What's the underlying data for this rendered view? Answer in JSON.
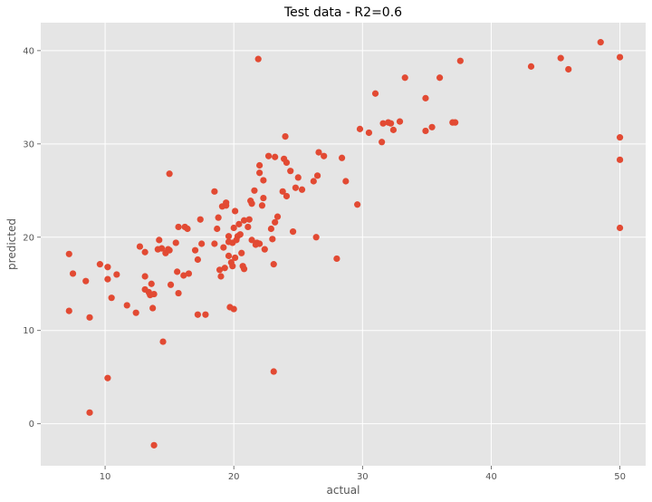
{
  "chart_data": {
    "type": "scatter",
    "title": "Test data  -  R2=0.6",
    "xlabel": "actual",
    "ylabel": "predicted",
    "xlim": [
      5,
      52
    ],
    "ylim": [
      -4.5,
      43
    ],
    "xticks": [
      10,
      20,
      30,
      40,
      50
    ],
    "yticks": [
      0,
      10,
      20,
      30,
      40
    ],
    "grid": true,
    "style": "ggplot",
    "background_color": "#e5e5e5",
    "grid_color": "#ffffff",
    "point_color": "#e24a33",
    "points": [
      [
        7.2,
        18.2
      ],
      [
        7.2,
        12.1
      ],
      [
        7.5,
        16.1
      ],
      [
        8.5,
        15.3
      ],
      [
        8.8,
        11.4
      ],
      [
        8.8,
        1.2
      ],
      [
        9.6,
        17.1
      ],
      [
        10.2,
        16.8
      ],
      [
        10.2,
        15.5
      ],
      [
        10.2,
        4.9
      ],
      [
        10.5,
        13.5
      ],
      [
        10.9,
        16.0
      ],
      [
        11.7,
        12.7
      ],
      [
        12.4,
        11.9
      ],
      [
        12.7,
        19.0
      ],
      [
        13.1,
        18.4
      ],
      [
        13.1,
        15.8
      ],
      [
        13.1,
        14.4
      ],
      [
        13.4,
        14.1
      ],
      [
        13.5,
        13.8
      ],
      [
        13.6,
        15.0
      ],
      [
        13.7,
        12.4
      ],
      [
        13.8,
        13.9
      ],
      [
        13.8,
        -2.3
      ],
      [
        14.1,
        18.7
      ],
      [
        14.2,
        19.7
      ],
      [
        14.4,
        18.8
      ],
      [
        14.5,
        8.8
      ],
      [
        14.7,
        18.3
      ],
      [
        14.9,
        18.7
      ],
      [
        15.0,
        18.6
      ],
      [
        15.0,
        26.8
      ],
      [
        15.1,
        14.9
      ],
      [
        15.5,
        19.4
      ],
      [
        15.6,
        16.3
      ],
      [
        15.7,
        14.0
      ],
      [
        15.7,
        21.1
      ],
      [
        16.1,
        15.9
      ],
      [
        16.2,
        21.1
      ],
      [
        16.4,
        20.9
      ],
      [
        16.5,
        16.1
      ],
      [
        17.0,
        18.6
      ],
      [
        17.2,
        17.6
      ],
      [
        17.2,
        11.7
      ],
      [
        17.4,
        21.9
      ],
      [
        17.5,
        19.3
      ],
      [
        17.8,
        11.7
      ],
      [
        18.5,
        24.9
      ],
      [
        18.5,
        19.3
      ],
      [
        18.7,
        20.9
      ],
      [
        18.8,
        22.1
      ],
      [
        18.9,
        16.5
      ],
      [
        19.0,
        15.8
      ],
      [
        19.1,
        23.3
      ],
      [
        19.2,
        18.9
      ],
      [
        19.3,
        16.7
      ],
      [
        19.4,
        23.4
      ],
      [
        19.4,
        23.7
      ],
      [
        19.6,
        19.5
      ],
      [
        19.6,
        20.1
      ],
      [
        19.6,
        18.0
      ],
      [
        19.7,
        12.5
      ],
      [
        19.8,
        17.3
      ],
      [
        19.9,
        19.4
      ],
      [
        19.9,
        16.9
      ],
      [
        20.0,
        21.0
      ],
      [
        20.0,
        12.3
      ],
      [
        20.1,
        22.8
      ],
      [
        20.1,
        17.8
      ],
      [
        20.2,
        19.7
      ],
      [
        20.3,
        20.1
      ],
      [
        20.4,
        21.4
      ],
      [
        20.5,
        20.3
      ],
      [
        20.6,
        18.3
      ],
      [
        20.7,
        16.9
      ],
      [
        20.8,
        16.6
      ],
      [
        20.8,
        21.8
      ],
      [
        21.1,
        21.1
      ],
      [
        21.2,
        21.9
      ],
      [
        21.3,
        23.9
      ],
      [
        21.4,
        19.7
      ],
      [
        21.4,
        23.6
      ],
      [
        21.6,
        25.0
      ],
      [
        21.7,
        19.2
      ],
      [
        21.8,
        19.4
      ],
      [
        21.9,
        39.1
      ],
      [
        22.0,
        19.3
      ],
      [
        22.0,
        27.7
      ],
      [
        22.0,
        26.9
      ],
      [
        22.2,
        23.4
      ],
      [
        22.3,
        24.2
      ],
      [
        22.3,
        26.1
      ],
      [
        22.4,
        18.7
      ],
      [
        22.7,
        28.7
      ],
      [
        22.9,
        20.9
      ],
      [
        23.0,
        19.8
      ],
      [
        23.1,
        17.1
      ],
      [
        23.1,
        5.6
      ],
      [
        23.2,
        21.6
      ],
      [
        23.2,
        28.6
      ],
      [
        23.4,
        22.2
      ],
      [
        23.8,
        24.9
      ],
      [
        23.9,
        28.4
      ],
      [
        24.0,
        30.8
      ],
      [
        24.1,
        24.4
      ],
      [
        24.1,
        28.0
      ],
      [
        24.4,
        27.1
      ],
      [
        24.6,
        20.6
      ],
      [
        24.8,
        25.3
      ],
      [
        25.0,
        26.4
      ],
      [
        25.3,
        25.1
      ],
      [
        26.2,
        26.0
      ],
      [
        26.4,
        20.0
      ],
      [
        26.5,
        26.6
      ],
      [
        26.6,
        29.1
      ],
      [
        27.0,
        28.7
      ],
      [
        28.0,
        17.7
      ],
      [
        28.4,
        28.5
      ],
      [
        28.7,
        26.0
      ],
      [
        29.6,
        23.5
      ],
      [
        29.8,
        31.6
      ],
      [
        30.5,
        31.2
      ],
      [
        31.0,
        35.4
      ],
      [
        31.5,
        30.2
      ],
      [
        31.6,
        32.2
      ],
      [
        32.0,
        32.3
      ],
      [
        32.2,
        32.2
      ],
      [
        32.4,
        31.5
      ],
      [
        32.9,
        32.4
      ],
      [
        33.3,
        37.1
      ],
      [
        34.9,
        34.9
      ],
      [
        34.9,
        31.4
      ],
      [
        35.4,
        31.8
      ],
      [
        36.0,
        37.1
      ],
      [
        37.0,
        32.3
      ],
      [
        37.2,
        32.3
      ],
      [
        37.6,
        38.9
      ],
      [
        43.1,
        38.3
      ],
      [
        45.4,
        39.2
      ],
      [
        46.0,
        38.0
      ],
      [
        48.5,
        40.9
      ],
      [
        50.0,
        39.3
      ],
      [
        50.0,
        30.7
      ],
      [
        50.0,
        28.3
      ],
      [
        50.0,
        21.0
      ]
    ]
  }
}
